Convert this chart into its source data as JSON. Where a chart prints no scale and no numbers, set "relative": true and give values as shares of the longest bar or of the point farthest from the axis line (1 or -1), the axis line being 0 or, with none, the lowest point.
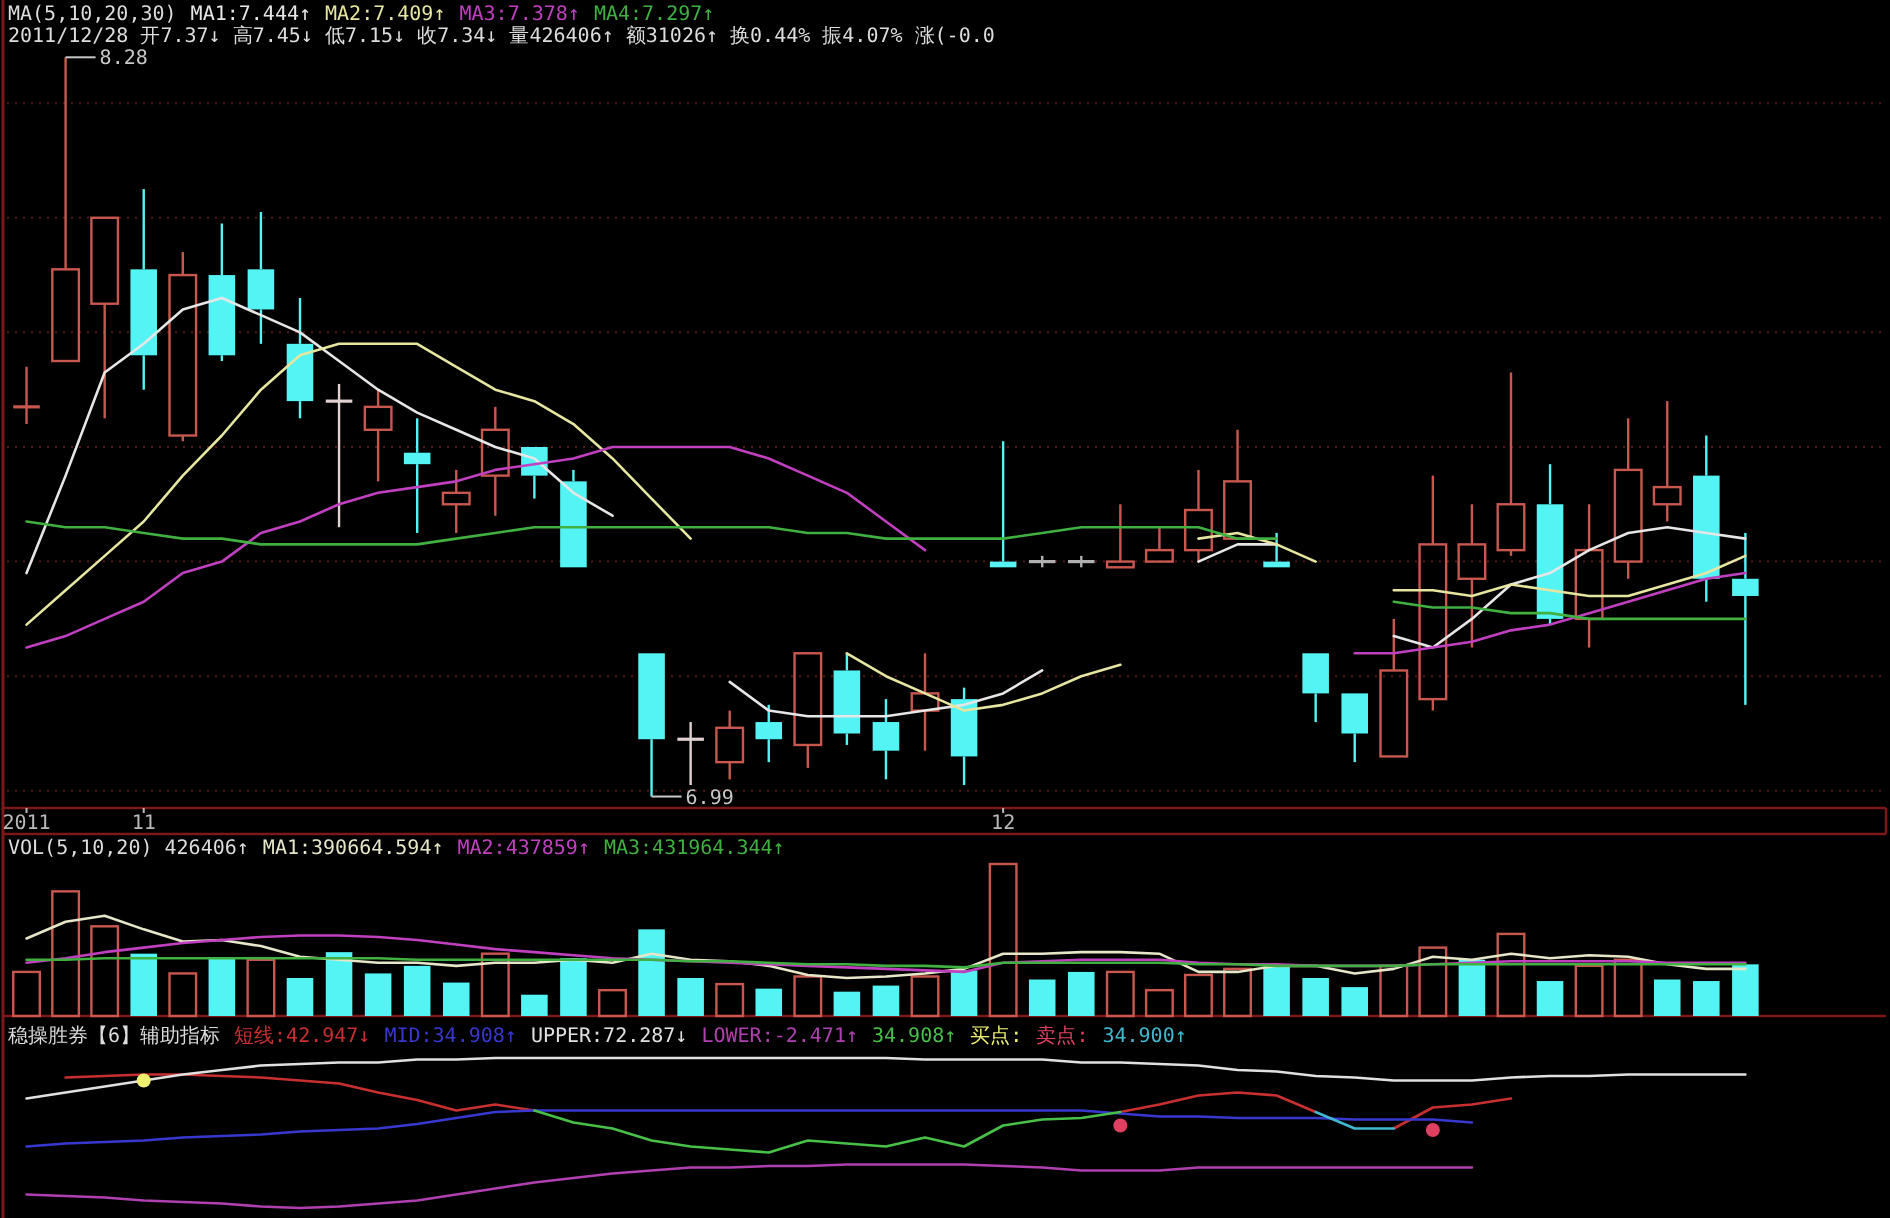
{
  "chart_data": [
    {
      "type": "candlestick",
      "title": "MA(5,10,20,30)",
      "subtitle": "2011/12/28 开7.37↓ 高7.45↓ 低7.15↓ 收7.34↓ 量426406↑ 额31026↑ 换0.44% 振4.07% 涨(-0.0",
      "legend": "top left",
      "tick_labels": "x",
      "grid": "y",
      "categories": [
        "2011",
        null,
        null,
        "11",
        null,
        null,
        null,
        null,
        null,
        null,
        null,
        null,
        null,
        null,
        null,
        null,
        null,
        null,
        null,
        null,
        null,
        null,
        null,
        null,
        null,
        "12",
        null,
        null,
        null,
        null,
        null,
        null,
        null,
        null,
        null,
        null,
        null,
        null,
        null,
        null,
        null,
        null,
        null,
        null,
        null
      ],
      "ylim": [
        6.97,
        8.38
      ],
      "yticks": [
        {
          "value": 7,
          "label": null
        },
        {
          "value": 7.2,
          "label": null
        },
        {
          "value": 7.4,
          "label": null
        },
        {
          "value": 7.6,
          "label": null
        },
        {
          "value": 7.8,
          "label": null
        },
        {
          "value": 8,
          "label": null
        },
        {
          "value": 8.2,
          "label": null
        }
      ],
      "ohlc": [
        [
          7.67,
          7.74,
          7.64,
          7.67
        ],
        [
          7.75,
          8.28,
          7.75,
          7.91
        ],
        [
          7.85,
          8.0,
          7.65,
          8.0
        ],
        [
          7.91,
          8.05,
          7.7,
          7.76
        ],
        [
          7.62,
          7.94,
          7.61,
          7.9
        ],
        [
          7.9,
          7.99,
          7.75,
          7.76
        ],
        [
          7.91,
          8.01,
          7.78,
          7.84
        ],
        [
          7.78,
          7.86,
          7.65,
          7.68
        ],
        [
          7.68,
          7.71,
          7.46,
          7.68
        ],
        [
          7.63,
          7.7,
          7.54,
          7.67
        ],
        [
          7.59,
          7.65,
          7.45,
          7.57
        ],
        [
          7.5,
          7.56,
          7.45,
          7.52
        ],
        [
          7.55,
          7.67,
          7.48,
          7.63
        ],
        [
          7.6,
          7.6,
          7.51,
          7.55
        ],
        [
          7.54,
          7.56,
          7.39,
          7.39
        ],
        null,
        [
          7.24,
          7.24,
          6.99,
          7.09
        ],
        [
          7.09,
          7.12,
          7.01,
          7.09
        ],
        [
          7.05,
          7.14,
          7.02,
          7.11
        ],
        [
          7.12,
          7.15,
          7.05,
          7.09
        ],
        [
          7.08,
          7.24,
          7.04,
          7.24
        ],
        [
          7.21,
          7.24,
          7.08,
          7.1
        ],
        [
          7.12,
          7.16,
          7.02,
          7.07
        ],
        [
          7.14,
          7.24,
          7.07,
          7.17
        ],
        [
          7.16,
          7.18,
          7.01,
          7.06
        ],
        [
          7.4,
          7.61,
          7.39,
          7.39
        ],
        [
          7.4,
          7.41,
          7.39,
          7.4
        ],
        [
          7.4,
          7.41,
          7.39,
          7.4
        ],
        [
          7.39,
          7.5,
          7.39,
          7.4
        ],
        [
          7.4,
          7.46,
          7.4,
          7.42
        ],
        [
          7.42,
          7.56,
          7.4,
          7.49
        ],
        [
          7.44,
          7.63,
          7.44,
          7.54
        ],
        [
          7.4,
          7.45,
          7.39,
          7.39
        ],
        [
          7.24,
          7.24,
          7.12,
          7.17
        ],
        [
          7.17,
          7.17,
          7.05,
          7.1
        ],
        [
          7.06,
          7.3,
          7.06,
          7.21
        ],
        [
          7.16,
          7.55,
          7.14,
          7.43
        ],
        [
          7.37,
          7.5,
          7.25,
          7.43
        ],
        [
          7.42,
          7.73,
          7.41,
          7.5
        ],
        [
          7.5,
          7.57,
          7.29,
          7.3
        ],
        [
          7.3,
          7.5,
          7.25,
          7.42
        ],
        [
          7.4,
          7.65,
          7.37,
          7.56
        ],
        [
          7.5,
          7.68,
          7.47,
          7.53
        ],
        [
          7.55,
          7.62,
          7.33,
          7.37
        ],
        [
          7.37,
          7.45,
          7.15,
          7.34
        ]
      ],
      "colors": [
        "#c8584e",
        "#c8584e",
        "#c8584e",
        "#55f4f4",
        "#c8584e",
        "#55f4f4",
        "#55f4f4",
        "#55f4f4",
        "#e0d0d0",
        "#c8584e",
        "#55f4f4",
        "#c8584e",
        "#c8584e",
        "#55f4f4",
        "#55f4f4",
        null,
        "#55f4f4",
        "#e0d0d0",
        "#c8584e",
        "#55f4f4",
        "#c8584e",
        "#55f4f4",
        "#55f4f4",
        "#c8584e",
        "#55f4f4",
        "#55f4f4",
        "#b0b0b0",
        "#b0b0b0",
        "#c8584e",
        "#c8584e",
        "#c8584e",
        "#c8584e",
        "#55f4f4",
        "#55f4f4",
        "#55f4f4",
        "#c8584e",
        "#c8584e",
        "#c8584e",
        "#c8584e",
        "#55f4f4",
        "#c8584e",
        "#c8584e",
        "#c8584e",
        "#55f4f4",
        "#55f4f4"
      ],
      "series": [
        {
          "type": "line",
          "name": "MA1:7.444↑",
          "color": "#e6e6e6",
          "values": [
            7.38,
            7.55,
            7.73,
            7.78,
            7.84,
            7.86,
            7.83,
            7.8,
            7.75,
            7.7,
            7.66,
            7.63,
            7.6,
            7.58,
            7.52,
            7.48,
            null,
            null,
            7.19,
            7.14,
            7.13,
            7.13,
            7.13,
            7.14,
            7.15,
            7.17,
            7.21,
            null,
            null,
            null,
            7.4,
            7.43,
            7.43,
            null,
            null,
            7.27,
            7.25,
            7.3,
            7.36,
            7.38,
            7.42,
            7.45,
            7.46,
            7.45,
            7.44
          ]
        },
        {
          "type": "line",
          "name": "MA2:7.409↑",
          "color": "#e6e6a0",
          "values": [
            7.29,
            7.35,
            7.41,
            7.47,
            7.55,
            7.62,
            7.7,
            7.76,
            7.78,
            7.78,
            7.78,
            7.74,
            7.7,
            7.68,
            7.64,
            7.58,
            7.51,
            7.44,
            null,
            null,
            null,
            7.24,
            7.2,
            7.17,
            7.14,
            7.15,
            7.17,
            7.2,
            7.22,
            null,
            7.44,
            7.45,
            7.43,
            7.4,
            null,
            7.35,
            7.35,
            7.34,
            7.36,
            7.35,
            7.34,
            7.34,
            7.36,
            7.38,
            7.41
          ]
        },
        {
          "type": "line",
          "name": "MA3:7.378↑",
          "color": "#c040c0",
          "values": [
            7.25,
            7.27,
            7.3,
            7.33,
            7.38,
            7.4,
            7.45,
            7.47,
            7.5,
            7.52,
            7.53,
            7.54,
            7.56,
            7.57,
            7.58,
            7.6,
            7.6,
            7.6,
            7.6,
            7.58,
            7.55,
            7.52,
            7.47,
            7.42,
            null,
            null,
            null,
            null,
            null,
            null,
            null,
            null,
            null,
            null,
            7.24,
            7.24,
            7.25,
            7.26,
            7.28,
            7.29,
            7.31,
            7.33,
            7.35,
            7.37,
            7.38
          ]
        },
        {
          "type": "line",
          "name": "MA4:7.297↑",
          "color": "#40b040",
          "values": [
            7.47,
            7.46,
            7.46,
            7.45,
            7.44,
            7.44,
            7.43,
            7.43,
            7.43,
            7.43,
            7.43,
            7.44,
            7.45,
            7.46,
            7.46,
            7.46,
            7.46,
            7.46,
            7.46,
            7.46,
            7.45,
            7.45,
            7.44,
            7.44,
            7.44,
            7.44,
            7.45,
            7.46,
            7.46,
            7.46,
            7.46,
            7.44,
            7.44,
            null,
            null,
            7.33,
            7.32,
            7.32,
            7.31,
            7.31,
            7.3,
            7.3,
            7.3,
            7.3,
            7.3
          ]
        }
      ],
      "annotations": [
        "8.28",
        "6.99"
      ]
    },
    {
      "type": "bar",
      "title": "VOL(5,10,20) 426406↑",
      "relative": true,
      "legend": "top left",
      "tick_labels": false,
      "categories": [
        null,
        null,
        null,
        null,
        null,
        null,
        null,
        null,
        null,
        null,
        null,
        null,
        null,
        null,
        null,
        null,
        null,
        null,
        null,
        null,
        null,
        null,
        null,
        null,
        null,
        null,
        null,
        null,
        null,
        null,
        null,
        null,
        null,
        null,
        null,
        null,
        null,
        null,
        null,
        null,
        null,
        null,
        null,
        null,
        null
      ],
      "series": [
        {
          "color": "#c8584e",
          "values": [
            0.29,
            0.82,
            0.59,
            null,
            0.28,
            null,
            0.37,
            null,
            null,
            null,
            null,
            null,
            0.41,
            null,
            null,
            0.17,
            null,
            null,
            0.21,
            null,
            0.26,
            null,
            null,
            0.26,
            null,
            1,
            null,
            null,
            0.29,
            0.17,
            0.27,
            0.31,
            null,
            null,
            null,
            0.33,
            0.45,
            null,
            0.54,
            null,
            0.33,
            0.37,
            null,
            null,
            null
          ]
        },
        {
          "color": "#55f4f4",
          "values": [
            null,
            null,
            null,
            0.41,
            null,
            0.38,
            null,
            0.25,
            0.42,
            0.28,
            0.33,
            0.22,
            null,
            0.14,
            0.38,
            null,
            0.57,
            0.25,
            null,
            0.18,
            null,
            0.16,
            0.2,
            null,
            0.3,
            null,
            0.24,
            0.29,
            null,
            null,
            null,
            null,
            0.34,
            0.25,
            0.19,
            null,
            null,
            0.37,
            null,
            0.23,
            null,
            null,
            0.24,
            0.23,
            0.34
          ]
        },
        {
          "type": "line",
          "name": "MA1:390664.594↑",
          "color": "#e6e6c8",
          "values": [
            0.51,
            0.62,
            0.66,
            0.57,
            0.49,
            0.5,
            0.46,
            0.39,
            0.37,
            0.35,
            0.35,
            0.33,
            0.35,
            0.35,
            0.37,
            0.35,
            0.41,
            0.37,
            0.36,
            0.33,
            0.27,
            0.25,
            0.26,
            0.28,
            0.31,
            0.41,
            0.41,
            0.42,
            0.42,
            0.41,
            0.29,
            0.29,
            0.33,
            0.33,
            0.28,
            0.31,
            0.39,
            0.37,
            0.41,
            0.38,
            0.4,
            0.39,
            0.34,
            0.31,
            0.31
          ]
        },
        {
          "type": "line",
          "name": "MA2:437859↑",
          "color": "#c040c0",
          "values": [
            0.35,
            0.38,
            0.42,
            0.45,
            0.48,
            0.5,
            0.52,
            0.53,
            0.53,
            0.52,
            0.5,
            0.47,
            0.44,
            0.42,
            0.4,
            0.38,
            0.37,
            0.36,
            0.35,
            0.34,
            0.33,
            0.32,
            0.31,
            0.3,
            0.29,
            0.35,
            0.36,
            0.37,
            0.37,
            0.37,
            0.35,
            0.34,
            0.34,
            0.33,
            0.33,
            0.33,
            0.34,
            0.35,
            0.36,
            0.36,
            0.36,
            0.36,
            0.35,
            0.35,
            0.35
          ]
        },
        {
          "type": "line",
          "name": "MA3:431964.344↑",
          "color": "#40b040",
          "values": [
            0.37,
            0.37,
            0.38,
            0.38,
            0.38,
            0.38,
            0.38,
            0.38,
            0.38,
            0.38,
            0.37,
            0.37,
            0.37,
            0.37,
            0.37,
            0.37,
            0.37,
            0.36,
            0.36,
            0.35,
            0.34,
            0.34,
            0.33,
            0.33,
            0.32,
            0.35,
            0.35,
            0.35,
            0.35,
            0.35,
            0.34,
            0.34,
            0.33,
            0.33,
            0.33,
            0.33,
            0.34,
            0.34,
            0.34,
            0.34,
            0.34,
            0.34,
            0.34,
            0.34,
            0.34
          ]
        }
      ]
    },
    {
      "type": "line",
      "title": "稳操胜券【6】辅助指标",
      "relative": true,
      "legend": "top left",
      "tick_labels": false,
      "categories": [
        null,
        null,
        null,
        null,
        null,
        null,
        null,
        null,
        null,
        null,
        null,
        null,
        null,
        null,
        null,
        null,
        null,
        null,
        null,
        null,
        null,
        null,
        null,
        null,
        null,
        null,
        null,
        null,
        null,
        null,
        null,
        null,
        null,
        null,
        null,
        null,
        null,
        null,
        null,
        null,
        null,
        null,
        null,
        null,
        null
      ],
      "series": [
        {
          "name": "短线:42.947↓",
          "color": "#c83030",
          "values": [
            null,
            0.87,
            0.88,
            0.89,
            0.89,
            0.88,
            0.87,
            0.85,
            0.83,
            0.77,
            0.72,
            0.65,
            0.69,
            0.65,
            null,
            null,
            null,
            null,
            null,
            null,
            null,
            null,
            null,
            null,
            null,
            null,
            null,
            null,
            0.64,
            0.69,
            0.75,
            0.77,
            0.75,
            0.64,
            null,
            0.53,
            0.67,
            0.69,
            0.73,
            null,
            null,
            null,
            null,
            null,
            null
          ]
        },
        {
          "name": "MID:34.908↑",
          "color": "#3838d0",
          "values": [
            0.41,
            0.43,
            0.44,
            0.45,
            0.47,
            0.48,
            0.49,
            0.51,
            0.52,
            0.53,
            0.56,
            0.6,
            0.64,
            0.65,
            0.65,
            0.65,
            0.65,
            0.65,
            0.65,
            0.65,
            0.65,
            0.65,
            0.65,
            0.65,
            0.65,
            0.65,
            0.65,
            0.65,
            0.63,
            0.61,
            0.61,
            0.6,
            0.6,
            0.6,
            0.59,
            0.59,
            0.59,
            0.57,
            null,
            null,
            null,
            null,
            null,
            null,
            null
          ]
        },
        {
          "name": "UPPER:72.287↓",
          "color": "#e0e0e0",
          "values": [
            0.73,
            0.77,
            0.81,
            0.85,
            0.89,
            0.92,
            0.95,
            0.96,
            0.97,
            0.97,
            0.99,
            0.99,
            1,
            1,
            1,
            1,
            1,
            1,
            1,
            1,
            1,
            1,
            1,
            0.99,
            0.99,
            0.99,
            0.99,
            0.97,
            0.97,
            0.96,
            0.95,
            0.92,
            0.91,
            0.88,
            0.87,
            0.85,
            0.85,
            0.85,
            0.87,
            0.88,
            0.88,
            0.89,
            0.89,
            0.89,
            0.89
          ]
        },
        {
          "name": "LOWER:-2.471↑",
          "color": "#b040b0",
          "values": [
            0.09,
            0.08,
            0.07,
            0.05,
            0.04,
            0.03,
            0.01,
            0,
            0.01,
            0.03,
            0.05,
            0.09,
            0.13,
            0.17,
            0.2,
            0.23,
            0.25,
            0.27,
            0.27,
            0.28,
            0.28,
            0.29,
            0.29,
            0.29,
            0.29,
            0.28,
            0.27,
            0.25,
            0.25,
            0.25,
            0.27,
            0.27,
            0.27,
            0.27,
            0.27,
            0.27,
            0.27,
            0.27,
            null,
            null,
            null,
            null,
            null,
            null,
            null
          ]
        },
        {
          "name": "34.908↑",
          "color": "#48c048",
          "values": [
            null,
            null,
            null,
            null,
            null,
            null,
            null,
            null,
            null,
            null,
            null,
            null,
            null,
            0.65,
            0.57,
            0.53,
            0.45,
            0.41,
            0.39,
            0.37,
            0.45,
            0.43,
            0.41,
            0.47,
            0.41,
            0.55,
            0.59,
            0.6,
            0.64,
            null,
            null,
            null,
            null,
            null,
            null,
            null,
            null,
            null,
            null,
            null,
            null,
            null,
            null,
            null,
            null
          ]
        },
        {
          "type": "scatter",
          "marker": "circle",
          "name": "买点:",
          "color": "#f0f070",
          "values": [
            null,
            null,
            null,
            0.85,
            null,
            null,
            null,
            null,
            null,
            null,
            null,
            null,
            null,
            null,
            null,
            null,
            null,
            null,
            null,
            null,
            null,
            null,
            null,
            null,
            null,
            null,
            null,
            null,
            null,
            null,
            null,
            null,
            null,
            null,
            null,
            null,
            null,
            null,
            null,
            null,
            null,
            null,
            null,
            null,
            null
          ]
        },
        {
          "type": "scatter",
          "marker": "circle",
          "name": "卖点:",
          "color": "#e04060",
          "values": [
            null,
            null,
            null,
            null,
            null,
            null,
            null,
            null,
            null,
            null,
            null,
            null,
            null,
            null,
            null,
            null,
            null,
            null,
            null,
            null,
            null,
            null,
            null,
            null,
            null,
            null,
            null,
            null,
            0.55,
            null,
            null,
            null,
            null,
            null,
            null,
            null,
            0.52,
            null,
            null,
            null,
            null,
            null,
            null,
            null,
            null
          ]
        },
        {
          "name": "34.900↑",
          "color": "#40b8d0",
          "values": [
            null,
            null,
            null,
            null,
            null,
            null,
            null,
            null,
            null,
            null,
            null,
            null,
            null,
            null,
            null,
            null,
            null,
            null,
            null,
            null,
            null,
            null,
            null,
            null,
            null,
            null,
            null,
            null,
            null,
            null,
            null,
            null,
            null,
            0.64,
            0.53,
            0.53,
            null,
            null,
            null,
            null,
            null,
            null,
            null,
            null,
            null
          ]
        }
      ]
    }
  ]
}
